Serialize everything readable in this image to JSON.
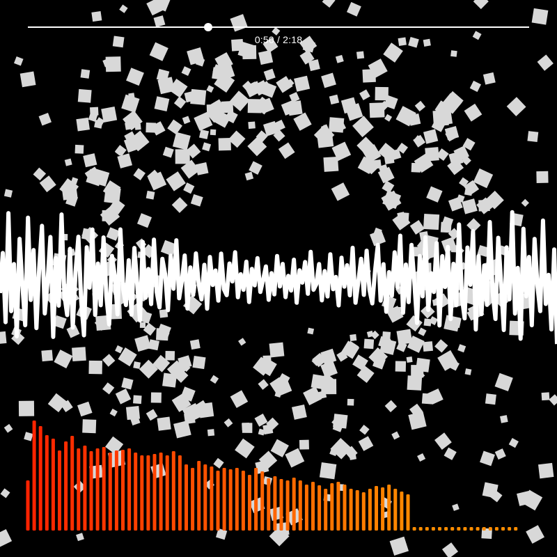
{
  "player": {
    "progress_fraction": 0.36,
    "time_text": "0:50 / 2:18"
  },
  "colors": {
    "background": "#000000",
    "waveform": "#ffffff",
    "particle": "#d8d8d8",
    "bar_start": "#ff2200",
    "bar_end": "#ff8c00"
  },
  "chart_data": {
    "type": "bar",
    "title": "",
    "xlabel": "",
    "ylabel": "",
    "ylim": [
      0,
      160
    ],
    "values": [
      72,
      158,
      150,
      137,
      132,
      115,
      128,
      136,
      118,
      122,
      114,
      118,
      120,
      112,
      115,
      116,
      118,
      112,
      108,
      108,
      110,
      112,
      108,
      114,
      108,
      95,
      90,
      100,
      95,
      92,
      86,
      90,
      88,
      90,
      86,
      80,
      90,
      85,
      75,
      78,
      74,
      72,
      76,
      72,
      66,
      70,
      65,
      60,
      68,
      70,
      66,
      60,
      58,
      55,
      60,
      64,
      62,
      66,
      60,
      56,
      52,
      5,
      5,
      5,
      5,
      5,
      5,
      5,
      5,
      5,
      5,
      5,
      5,
      5,
      5,
      5,
      5,
      5
    ]
  },
  "visualizer": {
    "waveform_samples": [
      0.2,
      -0.35,
      0.6,
      -0.9,
      0.45,
      -0.2,
      0.8,
      -0.55,
      0.1,
      0.65,
      -0.85,
      0.3,
      -0.4,
      0.7,
      -0.15,
      -0.75,
      0.5,
      0.05,
      -0.6,
      0.85,
      -0.3,
      0.4,
      -0.95,
      0.25,
      0.55,
      -0.45,
      0.75,
      -0.1,
      -0.65,
      0.35,
      0.9,
      -0.5,
      0.15,
      -0.8,
      0.6,
      -0.25,
      0.45,
      -0.7,
      0.3,
      0.8,
      -0.4,
      -0.05,
      0.65,
      -0.9,
      0.2,
      0.5,
      -0.35,
      0.7,
      -0.6,
      0.1,
      0.85,
      -0.75,
      0.4,
      -0.2,
      0.55,
      -0.85,
      0.3,
      0.65,
      -0.45,
      -0.1,
      0.75,
      -0.55,
      0.25,
      -0.95,
      0.5,
      0.05,
      -0.6,
      0.8,
      -0.3,
      0.45,
      -0.7,
      0.15,
      0.6,
      -0.4,
      0.9,
      -0.65,
      0.2,
      -0.25,
      0.7,
      -0.8,
      0.35,
      0.55,
      -0.5,
      0.1,
      -0.9,
      0.65,
      -0.15,
      0.4,
      -0.6,
      0.85,
      -0.35,
      0.25,
      -0.75,
      0.5,
      0.05,
      -0.45,
      0.8,
      -0.2,
      0.6,
      -0.85,
      0.3,
      -0.55,
      0.7,
      -0.1,
      0.45,
      -0.7,
      0.9,
      -0.3,
      0.15,
      -0.6,
      0.55,
      -0.95,
      0.4,
      0.2,
      -0.5,
      0.75,
      -0.25,
      0.6,
      -0.8,
      0.35,
      -0.05,
      0.85,
      -0.65,
      0.25,
      -0.4,
      0.5,
      -0.9,
      0.7,
      0.1,
      -0.55,
      0.45,
      -0.75,
      0.3,
      0.65,
      -0.2,
      -0.85,
      0.55,
      -0.35,
      0.8,
      -0.15,
      0.4,
      -0.6,
      0.2,
      -0.95,
      0.75,
      -0.3,
      0.5,
      -0.7,
      0.05,
      0.9,
      -0.45,
      0.35,
      -0.8,
      0.6,
      -0.1,
      0.25,
      -0.65,
      0.85,
      -0.4,
      0.15,
      -0.55,
      0.7,
      -0.25,
      0.45,
      -0.9,
      0.3,
      0.65,
      -0.5,
      0.1,
      -0.75,
      0.8,
      -0.35,
      0.55,
      -0.2,
      0.4,
      -0.85,
      0.2,
      0.6,
      -0.6,
      0.05,
      0.75,
      -0.45,
      0.3,
      -0.95,
      0.5,
      -0.15,
      0.85,
      -0.7,
      0.25,
      -0.3,
      0.65,
      -0.55,
      0.1,
      0.45,
      -0.8,
      0.35,
      -0.05,
      0.7,
      -0.4,
      0.9
    ]
  }
}
